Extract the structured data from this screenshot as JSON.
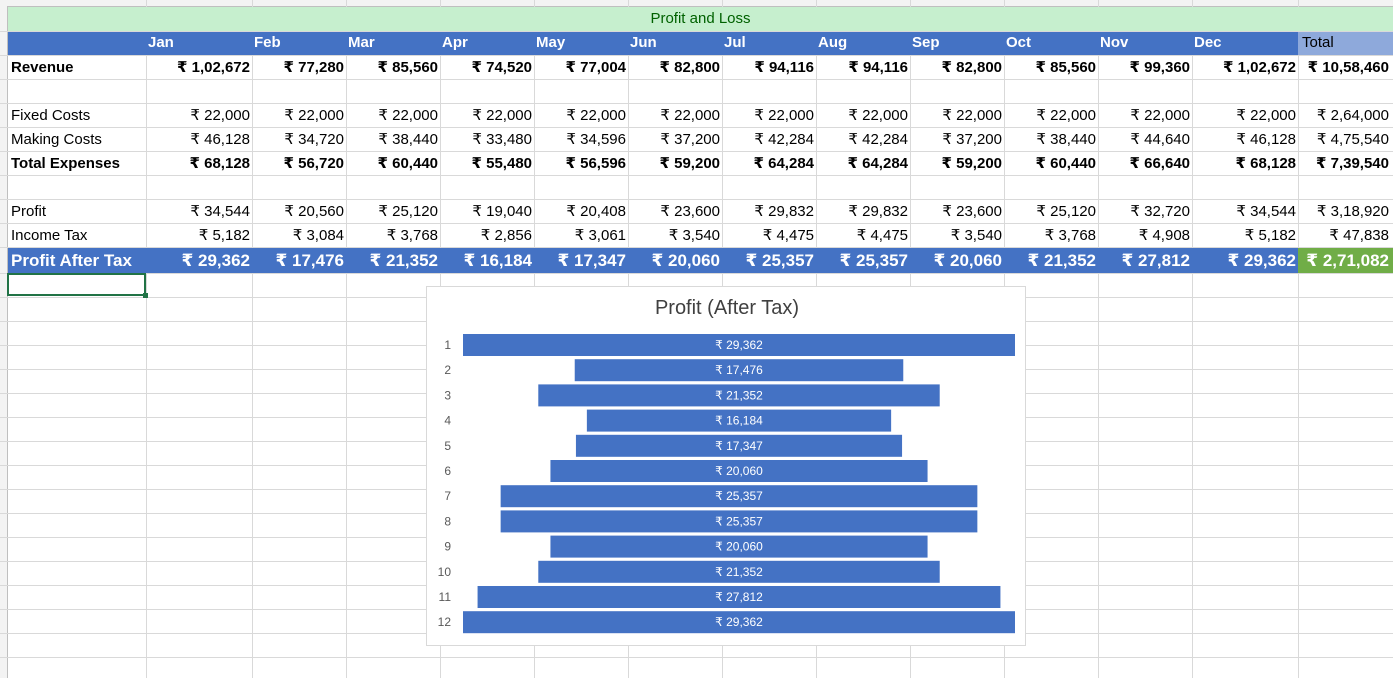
{
  "sheet": {
    "title": "Profit and Loss",
    "months": [
      "Jan",
      "Feb",
      "Mar",
      "Apr",
      "May",
      "Jun",
      "Jul",
      "Aug",
      "Sep",
      "Oct",
      "Nov",
      "Dec"
    ],
    "total_label": "Total",
    "rows": {
      "revenue": {
        "label": "Revenue",
        "values": [
          "₹ 1,02,672",
          "₹ 77,280",
          "₹ 85,560",
          "₹ 74,520",
          "₹ 77,004",
          "₹ 82,800",
          "₹ 94,116",
          "₹ 94,116",
          "₹ 82,800",
          "₹ 85,560",
          "₹ 99,360",
          "₹ 1,02,672"
        ],
        "total": "₹ 10,58,460"
      },
      "fixed_costs": {
        "label": "Fixed Costs",
        "values": [
          "₹ 22,000",
          "₹ 22,000",
          "₹ 22,000",
          "₹ 22,000",
          "₹ 22,000",
          "₹ 22,000",
          "₹ 22,000",
          "₹ 22,000",
          "₹ 22,000",
          "₹ 22,000",
          "₹ 22,000",
          "₹ 22,000"
        ],
        "total": "₹ 2,64,000"
      },
      "making_costs": {
        "label": "Making Costs",
        "values": [
          "₹ 46,128",
          "₹ 34,720",
          "₹ 38,440",
          "₹ 33,480",
          "₹ 34,596",
          "₹ 37,200",
          "₹ 42,284",
          "₹ 42,284",
          "₹ 37,200",
          "₹ 38,440",
          "₹ 44,640",
          "₹ 46,128"
        ],
        "total": "₹ 4,75,540"
      },
      "total_expenses": {
        "label": "Total Expenses",
        "values": [
          "₹ 68,128",
          "₹ 56,720",
          "₹ 60,440",
          "₹ 55,480",
          "₹ 56,596",
          "₹ 59,200",
          "₹ 64,284",
          "₹ 64,284",
          "₹ 59,200",
          "₹ 60,440",
          "₹ 66,640",
          "₹ 68,128"
        ],
        "total": "₹ 7,39,540"
      },
      "profit": {
        "label": "Profit",
        "values": [
          "₹ 34,544",
          "₹ 20,560",
          "₹ 25,120",
          "₹ 19,040",
          "₹ 20,408",
          "₹ 23,600",
          "₹ 29,832",
          "₹ 29,832",
          "₹ 23,600",
          "₹ 25,120",
          "₹ 32,720",
          "₹ 34,544"
        ],
        "total": "₹ 3,18,920"
      },
      "income_tax": {
        "label": "Income Tax",
        "values": [
          "₹ 5,182",
          "₹ 3,084",
          "₹ 3,768",
          "₹ 2,856",
          "₹ 3,061",
          "₹ 3,540",
          "₹ 4,475",
          "₹ 4,475",
          "₹ 3,540",
          "₹ 3,768",
          "₹ 4,908",
          "₹ 5,182"
        ],
        "total": "₹ 47,838"
      },
      "profit_after_tax": {
        "label": "Profit After Tax",
        "values": [
          "₹ 29,362",
          "₹ 17,476",
          "₹ 21,352",
          "₹ 16,184",
          "₹ 17,347",
          "₹ 20,060",
          "₹ 25,357",
          "₹ 25,357",
          "₹ 20,060",
          "₹ 21,352",
          "₹ 27,812",
          "₹ 29,362"
        ],
        "total": "₹ 2,71,082"
      }
    }
  },
  "colors": {
    "header_blue": "#4472c4",
    "title_green": "#c6efce",
    "title_text": "#006100",
    "total_header": "#8ea9db",
    "total_green": "#70ad47",
    "bar": "#4472c4"
  },
  "chart_data": {
    "type": "bar",
    "orientation": "horizontal",
    "layout": "centered funnel",
    "title": "Profit (After Tax)",
    "categories": [
      "1",
      "2",
      "3",
      "4",
      "5",
      "6",
      "7",
      "8",
      "9",
      "10",
      "11",
      "12"
    ],
    "values": [
      29362,
      17476,
      21352,
      16184,
      17347,
      20060,
      25357,
      25357,
      20060,
      21352,
      27812,
      29362
    ],
    "data_labels": [
      "₹ 29,362",
      "₹ 17,476",
      "₹ 21,352",
      "₹ 16,184",
      "₹ 17,347",
      "₹ 20,060",
      "₹ 25,357",
      "₹ 25,357",
      "₹ 20,060",
      "₹ 21,352",
      "₹ 27,812",
      "₹ 29,362"
    ],
    "grid": false,
    "legend": "none"
  }
}
